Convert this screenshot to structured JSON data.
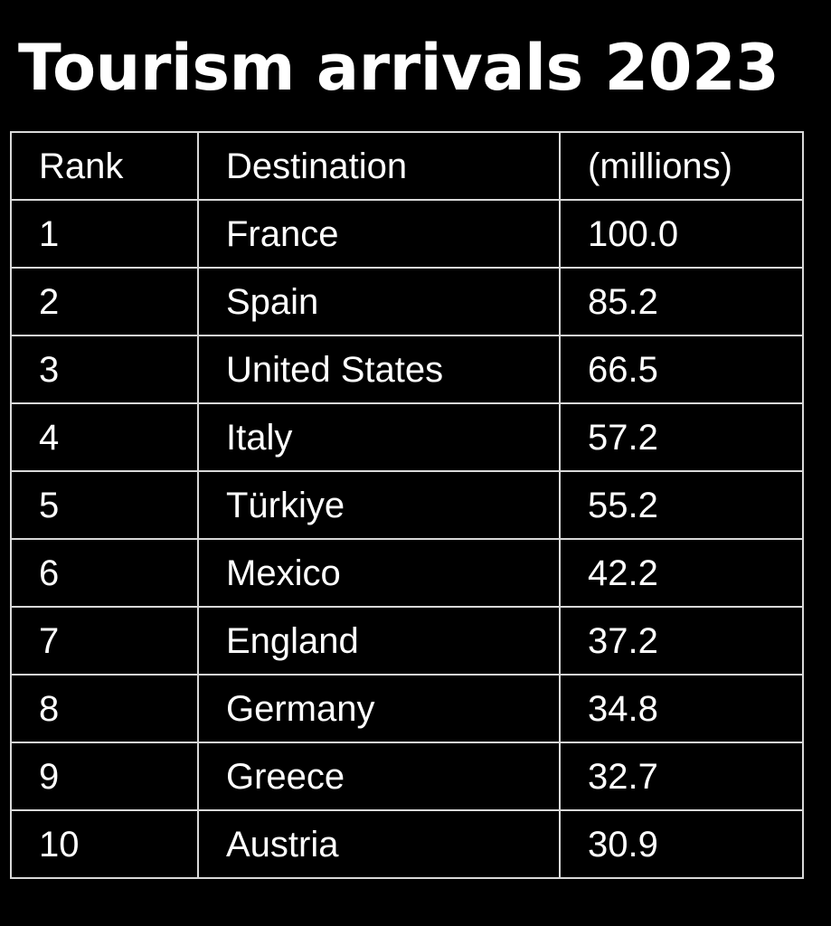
{
  "title": "Tourism arrivals 2023",
  "table": {
    "headers": [
      "Rank",
      "Destination",
      "(millions)"
    ],
    "rows": [
      {
        "rank": "1",
        "destination": "France",
        "arrivals": "100.0"
      },
      {
        "rank": "2",
        "destination": "Spain",
        "arrivals": "85.2"
      },
      {
        "rank": "3",
        "destination": "United States",
        "arrivals": "66.5"
      },
      {
        "rank": "4",
        "destination": "Italy",
        "arrivals": "57.2"
      },
      {
        "rank": "5",
        "destination": "Türkiye",
        "arrivals": "55.2"
      },
      {
        "rank": "6",
        "destination": "Mexico",
        "arrivals": "42.2"
      },
      {
        "rank": "7",
        "destination": "England",
        "arrivals": "37.2"
      },
      {
        "rank": "8",
        "destination": "Germany",
        "arrivals": "34.8"
      },
      {
        "rank": "9",
        "destination": "Greece",
        "arrivals": "32.7"
      },
      {
        "rank": "10",
        "destination": "Austria",
        "arrivals": "30.9"
      }
    ]
  },
  "colors": {
    "background": "#000000",
    "text": "#ffffff",
    "grid": "#d9d9d9"
  }
}
